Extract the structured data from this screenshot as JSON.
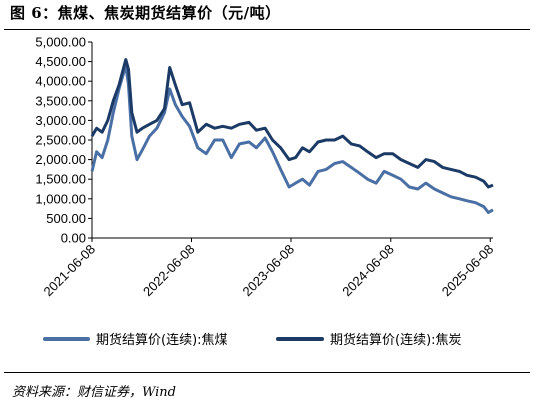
{
  "header": {
    "title": "图 6：焦煤、焦炭期货结算价（元/吨）"
  },
  "footer": {
    "source": "资料来源：财信证券，Wind"
  },
  "colors": {
    "series_1": "#4a6fa5",
    "series_2": "#1b3a66"
  },
  "chart_data": {
    "type": "line",
    "title": "焦煤、焦炭期货结算价（元/吨）",
    "xlabel": "",
    "ylabel": "",
    "x_ticks": [
      "2021-06-08",
      "2022-06-08",
      "2023-06-08",
      "2024-06-08",
      "2025-06-08"
    ],
    "y_ticks": [
      "0.00",
      "500.00",
      "1,000.00",
      "1,500.00",
      "2,000.00",
      "2,500.00",
      "3,000.00",
      "3,500.00",
      "4,000.00",
      "4,500.00",
      "5,000.00"
    ],
    "xlim": [
      "2021-06-08",
      "2025-06-18"
    ],
    "ylim": [
      0,
      5000
    ],
    "grid": false,
    "legend_position": "bottom",
    "series": [
      {
        "name": "期货结算价(连续):焦煤",
        "points": [
          [
            "2021-06-08",
            1700
          ],
          [
            "2021-06-25",
            2200
          ],
          [
            "2021-07-15",
            2050
          ],
          [
            "2021-08-05",
            2500
          ],
          [
            "2021-08-25",
            3200
          ],
          [
            "2021-09-15",
            3800
          ],
          [
            "2021-10-10",
            4400
          ],
          [
            "2021-10-20",
            3900
          ],
          [
            "2021-11-01",
            2600
          ],
          [
            "2021-11-20",
            2000
          ],
          [
            "2021-12-10",
            2250
          ],
          [
            "2022-01-05",
            2600
          ],
          [
            "2022-02-01",
            2800
          ],
          [
            "2022-03-01",
            3200
          ],
          [
            "2022-03-20",
            3800
          ],
          [
            "2022-04-10",
            3400
          ],
          [
            "2022-05-05",
            3100
          ],
          [
            "2022-06-01",
            2850
          ],
          [
            "2022-07-01",
            2300
          ],
          [
            "2022-08-01",
            2150
          ],
          [
            "2022-09-01",
            2500
          ],
          [
            "2022-10-01",
            2500
          ],
          [
            "2022-11-01",
            2050
          ],
          [
            "2022-12-01",
            2400
          ],
          [
            "2023-01-05",
            2450
          ],
          [
            "2023-02-01",
            2300
          ],
          [
            "2023-03-05",
            2550
          ],
          [
            "2023-04-01",
            2200
          ],
          [
            "2023-05-01",
            1750
          ],
          [
            "2023-06-01",
            1300
          ],
          [
            "2023-06-25",
            1400
          ],
          [
            "2023-07-20",
            1500
          ],
          [
            "2023-08-15",
            1350
          ],
          [
            "2023-09-15",
            1700
          ],
          [
            "2023-10-15",
            1750
          ],
          [
            "2023-11-15",
            1900
          ],
          [
            "2023-12-15",
            1950
          ],
          [
            "2024-01-15",
            1800
          ],
          [
            "2024-02-15",
            1650
          ],
          [
            "2024-03-15",
            1500
          ],
          [
            "2024-04-15",
            1400
          ],
          [
            "2024-05-15",
            1700
          ],
          [
            "2024-06-15",
            1600
          ],
          [
            "2024-07-15",
            1500
          ],
          [
            "2024-08-15",
            1300
          ],
          [
            "2024-09-15",
            1250
          ],
          [
            "2024-10-15",
            1400
          ],
          [
            "2024-11-15",
            1250
          ],
          [
            "2024-12-15",
            1150
          ],
          [
            "2025-01-15",
            1050
          ],
          [
            "2025-02-15",
            1000
          ],
          [
            "2025-03-15",
            950
          ],
          [
            "2025-04-15",
            900
          ],
          [
            "2025-05-15",
            800
          ],
          [
            "2025-06-01",
            650
          ],
          [
            "2025-06-18",
            720
          ]
        ]
      },
      {
        "name": "期货结算价(连续):焦炭",
        "points": [
          [
            "2021-06-08",
            2600
          ],
          [
            "2021-06-25",
            2800
          ],
          [
            "2021-07-15",
            2700
          ],
          [
            "2021-08-05",
            3000
          ],
          [
            "2021-08-25",
            3500
          ],
          [
            "2021-09-15",
            3900
          ],
          [
            "2021-10-10",
            4550
          ],
          [
            "2021-10-20",
            4300
          ],
          [
            "2021-11-01",
            3200
          ],
          [
            "2021-11-20",
            2700
          ],
          [
            "2021-12-10",
            2800
          ],
          [
            "2022-01-05",
            2900
          ],
          [
            "2022-02-01",
            3000
          ],
          [
            "2022-03-01",
            3300
          ],
          [
            "2022-03-20",
            4350
          ],
          [
            "2022-04-10",
            3900
          ],
          [
            "2022-05-05",
            3400
          ],
          [
            "2022-06-01",
            3450
          ],
          [
            "2022-07-01",
            2700
          ],
          [
            "2022-08-01",
            2900
          ],
          [
            "2022-09-01",
            2800
          ],
          [
            "2022-10-01",
            2850
          ],
          [
            "2022-11-01",
            2800
          ],
          [
            "2022-12-01",
            2900
          ],
          [
            "2023-01-05",
            2950
          ],
          [
            "2023-02-01",
            2750
          ],
          [
            "2023-03-05",
            2800
          ],
          [
            "2023-04-01",
            2500
          ],
          [
            "2023-05-01",
            2300
          ],
          [
            "2023-06-01",
            2000
          ],
          [
            "2023-06-25",
            2050
          ],
          [
            "2023-07-20",
            2300
          ],
          [
            "2023-08-15",
            2200
          ],
          [
            "2023-09-15",
            2450
          ],
          [
            "2023-10-15",
            2500
          ],
          [
            "2023-11-15",
            2500
          ],
          [
            "2023-12-15",
            2600
          ],
          [
            "2024-01-15",
            2400
          ],
          [
            "2024-02-15",
            2350
          ],
          [
            "2024-03-15",
            2200
          ],
          [
            "2024-04-15",
            2050
          ],
          [
            "2024-05-15",
            2150
          ],
          [
            "2024-06-15",
            2150
          ],
          [
            "2024-07-15",
            2000
          ],
          [
            "2024-08-15",
            1900
          ],
          [
            "2024-09-15",
            1800
          ],
          [
            "2024-10-15",
            2000
          ],
          [
            "2024-11-15",
            1950
          ],
          [
            "2024-12-15",
            1800
          ],
          [
            "2025-01-15",
            1750
          ],
          [
            "2025-02-15",
            1700
          ],
          [
            "2025-03-15",
            1600
          ],
          [
            "2025-04-15",
            1550
          ],
          [
            "2025-05-15",
            1450
          ],
          [
            "2025-06-01",
            1300
          ],
          [
            "2025-06-18",
            1350
          ]
        ]
      }
    ]
  }
}
